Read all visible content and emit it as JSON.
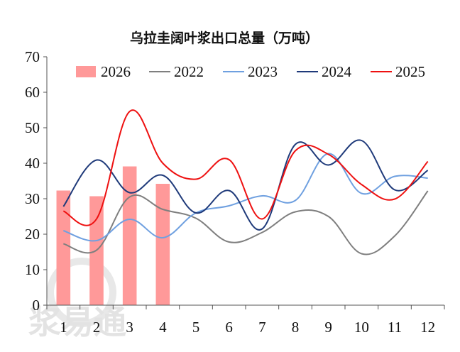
{
  "chart_data": {
    "type": "bar+line",
    "title": "乌拉圭阔叶浆出口总量（万吨）",
    "xlabel": "",
    "ylabel": "",
    "categories": [
      "1",
      "2",
      "3",
      "4",
      "5",
      "6",
      "7",
      "8",
      "9",
      "10",
      "11",
      "12"
    ],
    "ylim": [
      0,
      70
    ],
    "yticks": [
      "0",
      "10",
      "20",
      "30",
      "40",
      "50",
      "60",
      "70"
    ],
    "grid": false,
    "legend_position": "top",
    "bar_series": {
      "name": "2026",
      "color": "#ff9999",
      "values": [
        32.3,
        30.7,
        39.1,
        34.2,
        null,
        null,
        null,
        null,
        null,
        null,
        null,
        null
      ]
    },
    "series": [
      {
        "name": "2022",
        "color": "#7f7f7f",
        "values": [
          17.3,
          15.5,
          30.5,
          27.0,
          24.5,
          17.8,
          20.5,
          26.3,
          25.0,
          14.5,
          19.5,
          32.2
        ]
      },
      {
        "name": "2023",
        "color": "#6fa0e0",
        "values": [
          21.0,
          18.2,
          24.2,
          19.0,
          26.0,
          28.0,
          30.8,
          29.5,
          42.7,
          31.5,
          36.3,
          35.8
        ]
      },
      {
        "name": "2024",
        "color": "#1f3a7a",
        "values": [
          27.8,
          40.9,
          31.7,
          36.6,
          26.0,
          32.3,
          21.5,
          45.3,
          39.5,
          46.4,
          32.5,
          38.0
        ]
      },
      {
        "name": "2025",
        "color": "#ee1111",
        "values": [
          26.5,
          24.3,
          54.6,
          40.0,
          35.5,
          41.0,
          24.3,
          43.5,
          42.5,
          34.0,
          29.9,
          40.5
        ]
      }
    ],
    "watermark": "浆易通"
  }
}
